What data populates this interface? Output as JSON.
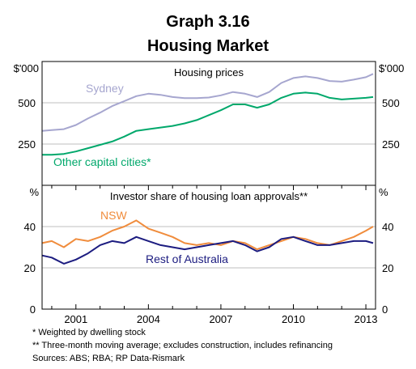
{
  "chart_data": {
    "title": "Graph 3.16",
    "subtitle": "Housing Market",
    "x_axis": {
      "range": [
        1999.6,
        2013.4
      ],
      "ticks": [
        2001,
        2004,
        2007,
        2010,
        2013
      ],
      "tick_labels": [
        "2001",
        "2004",
        "2007",
        "2010",
        "2013"
      ],
      "minor_ticks": "yearly"
    },
    "grid": true,
    "panels": [
      {
        "type": "line",
        "title": "Housing prices",
        "y_unit_label": "$'000",
        "ylim": [
          0,
          750
        ],
        "y_ticks": [
          250,
          500
        ],
        "y_tick_labels": [
          "250",
          "500"
        ],
        "series": [
          {
            "name": "Sydney",
            "color": "#a6a6cf",
            "x": [
              1999.6,
              2000.0,
              2000.5,
              2001.0,
              2001.5,
              2002.0,
              2002.5,
              2003.0,
              2003.5,
              2004.0,
              2004.5,
              2005.0,
              2005.5,
              2006.0,
              2006.5,
              2007.0,
              2007.5,
              2008.0,
              2008.5,
              2009.0,
              2009.5,
              2010.0,
              2010.5,
              2011.0,
              2011.5,
              2012.0,
              2012.5,
              2013.0,
              2013.3
            ],
            "y": [
              330,
              335,
              340,
              365,
              405,
              440,
              480,
              510,
              540,
              555,
              548,
              535,
              528,
              528,
              532,
              545,
              565,
              555,
              535,
              565,
              620,
              650,
              660,
              650,
              632,
              628,
              640,
              655,
              675
            ]
          },
          {
            "name": "Other capital cities*",
            "color": "#00a86b",
            "x": [
              1999.6,
              2000.0,
              2000.5,
              2001.0,
              2001.5,
              2002.0,
              2002.5,
              2003.0,
              2003.5,
              2004.0,
              2004.5,
              2005.0,
              2005.5,
              2006.0,
              2006.5,
              2007.0,
              2007.5,
              2008.0,
              2008.5,
              2009.0,
              2009.5,
              2010.0,
              2010.5,
              2011.0,
              2011.5,
              2012.0,
              2012.5,
              2013.0,
              2013.3
            ],
            "y": [
              185,
              185,
              190,
              205,
              225,
              245,
              265,
              295,
              330,
              340,
              350,
              360,
              375,
              395,
              425,
              455,
              490,
              490,
              470,
              490,
              530,
              555,
              562,
              555,
              530,
              520,
              525,
              530,
              535
            ]
          }
        ]
      },
      {
        "type": "line",
        "title": "Investor share of housing loan approvals**",
        "y_unit_label": "%",
        "ylim": [
          0,
          60
        ],
        "y_ticks": [
          0,
          20,
          40
        ],
        "y_tick_labels": [
          "0",
          "20",
          "40"
        ],
        "series": [
          {
            "name": "NSW",
            "color": "#f08c3c",
            "x": [
              1999.6,
              2000.0,
              2000.5,
              2001.0,
              2001.5,
              2002.0,
              2002.5,
              2003.0,
              2003.5,
              2004.0,
              2004.5,
              2005.0,
              2005.5,
              2006.0,
              2006.5,
              2007.0,
              2007.5,
              2008.0,
              2008.5,
              2009.0,
              2009.5,
              2010.0,
              2010.5,
              2011.0,
              2011.5,
              2012.0,
              2012.5,
              2013.0,
              2013.3
            ],
            "y": [
              32,
              33,
              30,
              34,
              33,
              35,
              38,
              40,
              43,
              39,
              37,
              35,
              32,
              31,
              32,
              31,
              33,
              32,
              29,
              31,
              33,
              35,
              34,
              32,
              31,
              33,
              35,
              38,
              40
            ]
          },
          {
            "name": "Rest of Australia",
            "color": "#1c1c80",
            "x": [
              1999.6,
              2000.0,
              2000.5,
              2001.0,
              2001.5,
              2002.0,
              2002.5,
              2003.0,
              2003.5,
              2004.0,
              2004.5,
              2005.0,
              2005.5,
              2006.0,
              2006.5,
              2007.0,
              2007.5,
              2008.0,
              2008.5,
              2009.0,
              2009.5,
              2010.0,
              2010.5,
              2011.0,
              2011.5,
              2012.0,
              2012.5,
              2013.0,
              2013.3
            ],
            "y": [
              26,
              25,
              22,
              24,
              27,
              31,
              33,
              32,
              35,
              33,
              31,
              30,
              29,
              30,
              31,
              32,
              33,
              31,
              28,
              30,
              34,
              35,
              33,
              31,
              31,
              32,
              33,
              33,
              32
            ]
          }
        ]
      }
    ],
    "footnotes": [
      "*   Weighted by dwelling stock",
      "**  Three-month moving average; excludes construction, includes refinancing",
      "Sources: ABS; RBA; RP Data-Rismark"
    ]
  }
}
